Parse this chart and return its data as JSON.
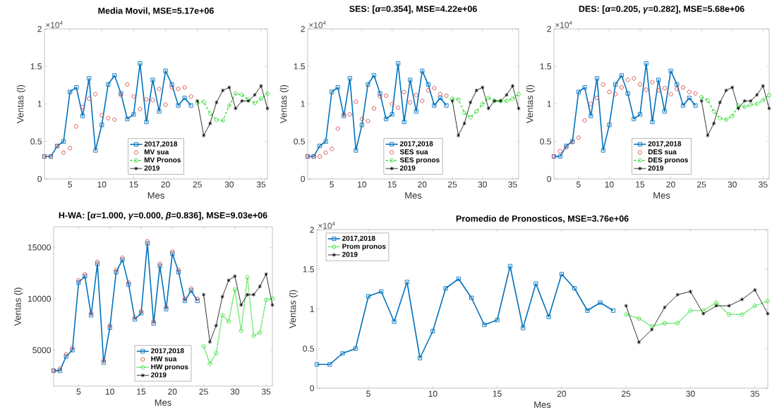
{
  "chart_data": [
    {
      "type": "line",
      "title": "Media Movil, MSE=5.17e+06",
      "xlabel": "Mes",
      "ylabel": "Ventas (l)",
      "annotations": [
        "×10$^{4}$"
      ],
      "xlim": [
        1,
        36
      ],
      "ylim": [
        0,
        2
      ],
      "xticks": [
        5,
        10,
        15,
        20,
        25,
        30,
        35
      ],
      "yticks": [
        0,
        0.5,
        1,
        1.5,
        2
      ],
      "legend": "bottom",
      "series": [
        {
          "name": "2017,2018",
          "color": "#0072bd",
          "marker": "square",
          "line_style": "solid",
          "x": [
            1,
            2,
            3,
            4,
            5,
            6,
            7,
            8,
            9,
            10,
            11,
            12,
            13,
            14,
            15,
            16,
            17,
            18,
            19,
            20,
            21,
            22,
            23,
            24
          ],
          "values": [
            0.3,
            0.3,
            0.44,
            0.5,
            1.16,
            1.22,
            0.84,
            1.34,
            0.38,
            0.72,
            1.26,
            1.38,
            1.14,
            0.8,
            0.86,
            1.54,
            0.76,
            1.32,
            0.9,
            1.44,
            1.26,
            0.98,
            1.08,
            0.98
          ]
        },
        {
          "name": "MV sua",
          "color": "#d94040",
          "type": "scatter",
          "marker": "circle",
          "x": [
            1,
            2,
            3,
            4,
            5,
            6,
            7,
            8,
            9,
            10,
            11,
            12,
            13,
            14,
            15,
            16,
            17,
            18,
            19,
            20,
            21,
            22,
            23,
            24
          ],
          "values": [
            0.3,
            0.3,
            0.44,
            0.35,
            0.41,
            0.7,
            0.96,
            1.07,
            1.13,
            0.85,
            0.81,
            0.79,
            1.12,
            1.26,
            1.1,
            0.93,
            1.06,
            1.05,
            1.2,
            0.99,
            1.22,
            1.2,
            1.22,
            1.1
          ]
        },
        {
          "name": "MV Pronos",
          "color": "#33dd33",
          "marker": "circle",
          "line_style": "dashed",
          "x": [
            25,
            26,
            27,
            28,
            29,
            30,
            31,
            32,
            33,
            34,
            35,
            36
          ],
          "values": [
            1.01,
            1.03,
            0.87,
            0.79,
            0.78,
            0.98,
            1.14,
            1.12,
            1.06,
            1.01,
            1.07,
            1.14
          ]
        },
        {
          "name": "2019",
          "color": "#000000",
          "marker": "cross",
          "line_style": "solid",
          "x": [
            25,
            26,
            27,
            28,
            29,
            30,
            31,
            32,
            33,
            34,
            35,
            36
          ],
          "values": [
            1.04,
            0.58,
            0.74,
            1.02,
            1.18,
            1.22,
            0.94,
            1.04,
            1.04,
            1.12,
            1.24,
            0.94
          ]
        }
      ]
    },
    {
      "type": "line",
      "title": "SES: [*α*=0.354], MSE=4.22e+06",
      "xlabel": "Mes",
      "ylabel": "Ventas (l)",
      "annotations": [
        "×10$^{4}$"
      ],
      "xlim": [
        1,
        36
      ],
      "ylim": [
        0,
        2
      ],
      "xticks": [
        5,
        10,
        15,
        20,
        25,
        30,
        35
      ],
      "yticks": [
        0,
        0.5,
        1,
        1.5,
        2
      ],
      "legend": "bottom",
      "series": [
        {
          "name": "2017,2018",
          "color": "#0072bd",
          "marker": "square",
          "line_style": "solid",
          "x": [
            1,
            2,
            3,
            4,
            5,
            6,
            7,
            8,
            9,
            10,
            11,
            12,
            13,
            14,
            15,
            16,
            17,
            18,
            19,
            20,
            21,
            22,
            23,
            24
          ],
          "values": [
            0.3,
            0.3,
            0.44,
            0.5,
            1.16,
            1.22,
            0.84,
            1.34,
            0.38,
            0.72,
            1.26,
            1.38,
            1.14,
            0.8,
            0.86,
            1.54,
            0.76,
            1.32,
            0.9,
            1.44,
            1.26,
            0.98,
            1.08,
            0.98
          ]
        },
        {
          "name": "SES sua",
          "color": "#d94040",
          "type": "scatter",
          "marker": "circle",
          "x": [
            1,
            2,
            3,
            4,
            5,
            6,
            7,
            8,
            9,
            10,
            11,
            12,
            13,
            14,
            15,
            16,
            17,
            18,
            19,
            20,
            21,
            22,
            23,
            24
          ],
          "values": [
            0.3,
            0.3,
            0.3,
            0.35,
            0.4,
            0.67,
            0.86,
            0.86,
            1.03,
            0.8,
            0.77,
            0.94,
            1.1,
            1.11,
            1.0,
            0.95,
            1.16,
            1.02,
            1.12,
            1.04,
            1.18,
            1.21,
            1.13,
            1.11
          ]
        },
        {
          "name": "SES pronos",
          "color": "#33dd33",
          "marker": "circle",
          "line_style": "dashed",
          "x": [
            25,
            26,
            27,
            28,
            29,
            30,
            31,
            32,
            33,
            34,
            35,
            36
          ],
          "values": [
            1.07,
            1.06,
            0.88,
            0.82,
            0.9,
            1.0,
            1.08,
            1.04,
            1.04,
            1.04,
            1.07,
            1.13
          ]
        },
        {
          "name": "2019",
          "color": "#000000",
          "marker": "cross",
          "line_style": "solid",
          "x": [
            25,
            26,
            27,
            28,
            29,
            30,
            31,
            32,
            33,
            34,
            35,
            36
          ],
          "values": [
            1.04,
            0.58,
            0.74,
            1.02,
            1.18,
            1.22,
            0.94,
            1.04,
            1.04,
            1.12,
            1.24,
            0.94
          ]
        }
      ]
    },
    {
      "type": "line",
      "title": "DES: [*α*=0.205, *γ*=0.282], MSE=5.68e+06",
      "xlabel": "Mes",
      "ylabel": "Ventas (l)",
      "annotations": [
        "×10$^{4}$"
      ],
      "xlim": [
        1,
        36
      ],
      "ylim": [
        0,
        2
      ],
      "xticks": [
        5,
        10,
        15,
        20,
        25,
        30,
        35
      ],
      "yticks": [
        0,
        0.5,
        1,
        1.5,
        2
      ],
      "legend": "bottom",
      "series": [
        {
          "name": "2017,2018",
          "color": "#0072bd",
          "marker": "square",
          "line_style": "solid",
          "x": [
            1,
            2,
            3,
            4,
            5,
            6,
            7,
            8,
            9,
            10,
            11,
            12,
            13,
            14,
            15,
            16,
            17,
            18,
            19,
            20,
            21,
            22,
            23,
            24
          ],
          "values": [
            0.3,
            0.3,
            0.44,
            0.5,
            1.16,
            1.22,
            0.84,
            1.34,
            0.38,
            0.72,
            1.26,
            1.38,
            1.14,
            0.8,
            0.86,
            1.54,
            0.76,
            1.32,
            0.9,
            1.44,
            1.26,
            0.98,
            1.08,
            0.98
          ]
        },
        {
          "name": "DES sua",
          "color": "#d94040",
          "type": "scatter",
          "marker": "circle",
          "x": [
            1,
            2,
            3,
            4,
            5,
            6,
            7,
            8,
            9,
            10,
            11,
            12,
            13,
            14,
            15,
            16,
            17,
            18,
            19,
            20,
            21,
            22,
            23,
            24
          ],
          "values": [
            0.3,
            0.37,
            0.42,
            0.49,
            0.55,
            0.78,
            1.0,
            1.08,
            1.26,
            1.16,
            1.13,
            1.22,
            1.32,
            1.34,
            1.26,
            1.19,
            1.29,
            1.18,
            1.21,
            1.13,
            1.2,
            1.22,
            1.16,
            1.14
          ]
        },
        {
          "name": "DES pronos",
          "color": "#33dd33",
          "marker": "circle",
          "line_style": "dashed",
          "x": [
            25,
            26,
            27,
            28,
            29,
            30,
            31,
            32,
            33,
            34,
            35,
            36
          ],
          "values": [
            1.09,
            1.05,
            0.9,
            0.81,
            0.79,
            0.84,
            0.98,
            0.96,
            0.99,
            1.0,
            1.05,
            1.12
          ]
        },
        {
          "name": "2019",
          "color": "#000000",
          "marker": "cross",
          "line_style": "solid",
          "x": [
            25,
            26,
            27,
            28,
            29,
            30,
            31,
            32,
            33,
            34,
            35,
            36
          ],
          "values": [
            1.04,
            0.58,
            0.74,
            1.02,
            1.18,
            1.22,
            0.94,
            1.04,
            1.04,
            1.12,
            1.24,
            0.94
          ]
        }
      ]
    },
    {
      "type": "line",
      "title": "H-WA: [*α*=1.000, *γ*=0.000, *β*=0.836], MSE=9.03e+06",
      "xlabel": "Mes",
      "ylabel": "Ventas (l)",
      "xlim": [
        1,
        36
      ],
      "ylim": [
        1500,
        17000
      ],
      "xticks": [
        5,
        10,
        15,
        20,
        25,
        30,
        35
      ],
      "yticks": [
        5000,
        10000,
        15000
      ],
      "legend": "bottom",
      "series": [
        {
          "name": "2017,2018",
          "color": "#0072bd",
          "marker": "square",
          "line_style": "solid",
          "x": [
            1,
            2,
            3,
            4,
            5,
            6,
            7,
            8,
            9,
            10,
            11,
            12,
            13,
            14,
            15,
            16,
            17,
            18,
            19,
            20,
            21,
            22,
            23,
            24
          ],
          "values": [
            3000,
            3000,
            4400,
            5000,
            11600,
            12200,
            8400,
            13400,
            3800,
            7200,
            12600,
            13800,
            11400,
            8000,
            8600,
            15400,
            7600,
            13200,
            9000,
            14400,
            12600,
            9800,
            10800,
            9800
          ]
        },
        {
          "name": "HW sua",
          "color": "#d94040",
          "type": "scatter",
          "marker": "circle",
          "x": [
            1,
            2,
            3,
            4,
            5,
            6,
            7,
            8,
            9,
            10,
            11,
            12,
            13,
            14,
            15,
            16,
            17,
            18,
            19,
            20,
            21,
            22,
            23,
            24
          ],
          "values": [
            3000,
            3200,
            4600,
            5200,
            11800,
            12400,
            8600,
            13600,
            4000,
            7400,
            12800,
            14000,
            11600,
            8200,
            8800,
            15600,
            7800,
            13400,
            9200,
            14600,
            12800,
            10000,
            11000,
            10000
          ]
        },
        {
          "name": "HW pronos",
          "color": "#33dd33",
          "marker": "circle",
          "line_style": "dotted",
          "x": [
            25,
            26,
            27,
            28,
            29,
            30,
            31,
            32,
            33,
            34,
            35,
            36
          ],
          "values": [
            5400,
            3700,
            4700,
            8400,
            7800,
            10900,
            6900,
            12100,
            6400,
            6700,
            9900,
            10000
          ]
        },
        {
          "name": "2019",
          "color": "#000000",
          "marker": "cross",
          "line_style": "solid",
          "x": [
            25,
            26,
            27,
            28,
            29,
            30,
            31,
            32,
            33,
            34,
            35,
            36
          ],
          "values": [
            10400,
            5800,
            7400,
            10200,
            11800,
            12200,
            9400,
            10400,
            10400,
            11200,
            12400,
            9400
          ]
        }
      ]
    },
    {
      "type": "line",
      "title": "Promedio de Pronosticos, MSE=3.76e+06",
      "xlabel": "Mes",
      "ylabel": "Ventas (l)",
      "annotations": [
        "×10$^{4}$"
      ],
      "xlim": [
        1,
        36
      ],
      "ylim": [
        0,
        2
      ],
      "xticks": [
        5,
        10,
        15,
        20,
        25,
        30,
        35
      ],
      "yticks": [
        0,
        0.5,
        1,
        1.5,
        2
      ],
      "legend": "top left",
      "series": [
        {
          "name": "2017,2018",
          "color": "#0072bd",
          "marker": "square",
          "line_style": "solid",
          "x": [
            1,
            2,
            3,
            4,
            5,
            6,
            7,
            8,
            9,
            10,
            11,
            12,
            13,
            14,
            15,
            16,
            17,
            18,
            19,
            20,
            21,
            22,
            23,
            24
          ],
          "values": [
            0.3,
            0.3,
            0.44,
            0.5,
            1.16,
            1.22,
            0.84,
            1.34,
            0.38,
            0.72,
            1.26,
            1.38,
            1.14,
            0.8,
            0.86,
            1.54,
            0.76,
            1.32,
            0.9,
            1.44,
            1.26,
            0.98,
            1.08,
            0.98
          ]
        },
        {
          "name": "Prom pronos",
          "color": "#33dd33",
          "marker": "circle",
          "line_style": "dotted",
          "x": [
            25,
            26,
            27,
            28,
            29,
            30,
            31,
            32,
            33,
            34,
            35,
            36
          ],
          "values": [
            0.93,
            0.88,
            0.78,
            0.82,
            0.82,
            0.98,
            0.98,
            1.08,
            0.93,
            0.93,
            1.04,
            1.1
          ]
        },
        {
          "name": "2019",
          "color": "#000000",
          "marker": "cross",
          "line_style": "solid",
          "x": [
            25,
            26,
            27,
            28,
            29,
            30,
            31,
            32,
            33,
            34,
            35,
            36
          ],
          "values": [
            1.04,
            0.58,
            0.74,
            1.02,
            1.18,
            1.22,
            0.94,
            1.04,
            1.04,
            1.12,
            1.24,
            0.94
          ]
        }
      ]
    }
  ]
}
